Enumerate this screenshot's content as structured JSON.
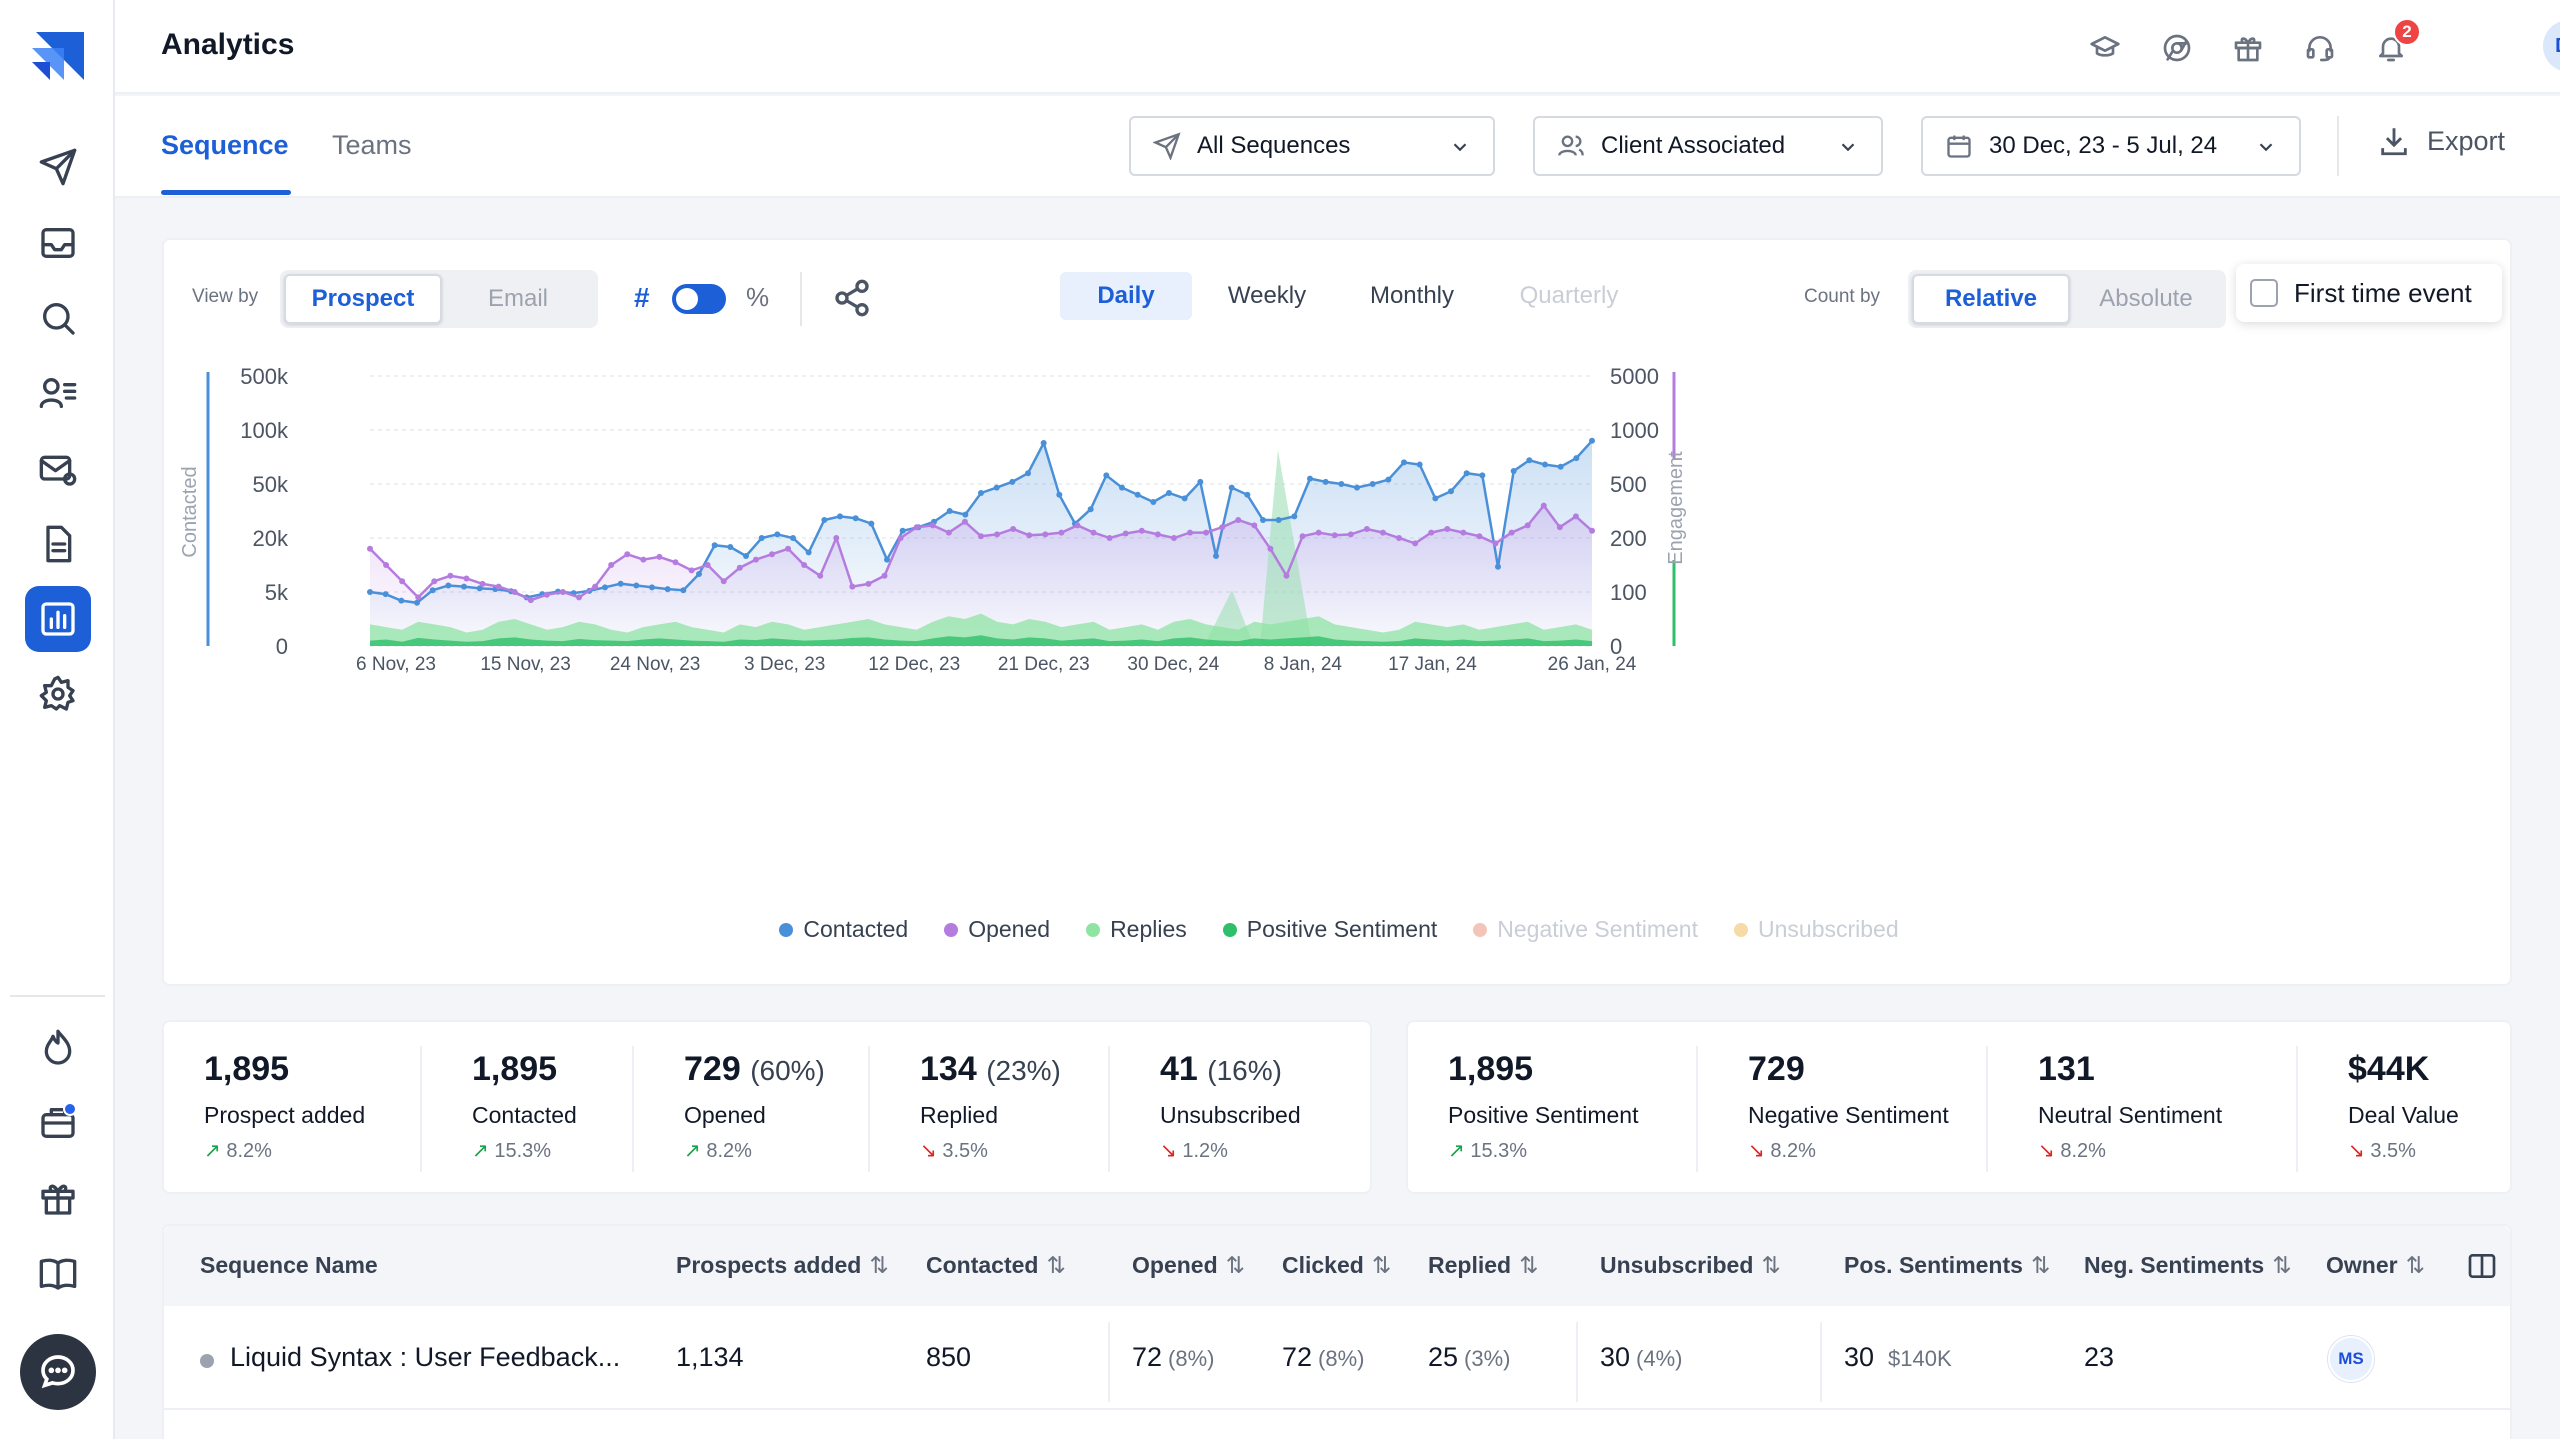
{
  "header": {
    "title": "Analytics",
    "notifications_count": "2",
    "user_initials": "DP"
  },
  "tabs": [
    {
      "label": "Sequence",
      "active": true
    },
    {
      "label": "Teams",
      "active": false
    }
  ],
  "filters": {
    "sequence": "All Sequences",
    "client": "Client Associated",
    "date_range": "30 Dec, 23 - 5 Jul, 24",
    "export_label": "Export"
  },
  "controls": {
    "view_by_label": "View by",
    "view_by_options": [
      "Prospect",
      "Email"
    ],
    "view_by_selected": "Prospect",
    "hash_label": "#",
    "percent_label": "%",
    "periods": [
      "Daily",
      "Weekly",
      "Monthly",
      "Quarterly"
    ],
    "period_selected": "Daily",
    "count_by_label": "Count by",
    "count_by_options": [
      "Relative",
      "Absolute"
    ],
    "count_by_selected": "Relative",
    "first_time_event_label": "First time event"
  },
  "chart_data": {
    "type": "line",
    "y_left_label": "Contacted",
    "y_right_label": "Engagement",
    "y_left_ticks": [
      "500k",
      "100k",
      "50k",
      "20k",
      "5k",
      "0"
    ],
    "y_right_ticks": [
      "5000",
      "1000",
      "500",
      "200",
      "100",
      "0"
    ],
    "x_tick_labels": [
      "6 Nov, 23",
      "15 Nov, 23",
      "24 Nov, 23",
      "3 Dec, 23",
      "12 Dec, 23",
      "21 Dec, 23",
      "30 Dec, 24",
      "8 Jan, 24",
      "17 Jan, 24",
      "26 Jan, 24"
    ],
    "grid": true,
    "legend_position": "bottom",
    "series": [
      {
        "name": "Contacted",
        "color": "#4a90d9",
        "axis": "left",
        "values": [
          5000,
          4800,
          4200,
          4000,
          5500,
          6800,
          6500,
          6000,
          5800,
          5200,
          4500,
          4800,
          5100,
          4900,
          5300,
          6300,
          7300,
          6800,
          6300,
          5800,
          5500,
          10000,
          18000,
          17500,
          15000,
          20000,
          22000,
          20000,
          16000,
          30000,
          32000,
          31000,
          28000,
          14000,
          24000,
          26000,
          29000,
          35000,
          33000,
          45000,
          48000,
          52000,
          60000,
          88000,
          44000,
          28000,
          36000,
          58000,
          48000,
          44000,
          40000,
          45000,
          42000,
          52000,
          15000,
          48000,
          44000,
          30000,
          30000,
          32000,
          55000,
          52000,
          50000,
          48000,
          50000,
          54000,
          70000,
          68000,
          42000,
          46000,
          60000,
          58000,
          12000,
          62000,
          72000,
          68000,
          66000,
          74000,
          90000
        ]
      },
      {
        "name": "Opened",
        "color": "#b57ce0",
        "axis": "left",
        "values": [
          180,
          150,
          120,
          90,
          120,
          130,
          125,
          115,
          110,
          100,
          85,
          95,
          100,
          90,
          110,
          150,
          170,
          160,
          165,
          155,
          140,
          150,
          120,
          145,
          160,
          170,
          180,
          150,
          130,
          200,
          110,
          115,
          130,
          200,
          260,
          270,
          230,
          290,
          210,
          220,
          250,
          215,
          220,
          230,
          270,
          230,
          200,
          225,
          240,
          220,
          200,
          230,
          230,
          260,
          300,
          270,
          180,
          130,
          210,
          230,
          215,
          220,
          250,
          230,
          200,
          190,
          230,
          250,
          230,
          210,
          190,
          230,
          270,
          380,
          260,
          320,
          240
        ]
      },
      {
        "name": "Replies",
        "color": "#8fe3a3",
        "axis": "right",
        "values": [
          40,
          35,
          30,
          45,
          40,
          35,
          25,
          30,
          45,
          50,
          40,
          30,
          35,
          45,
          40,
          30,
          25,
          35,
          40,
          45,
          35,
          30,
          25,
          40,
          35,
          45,
          40,
          30,
          35,
          40,
          45,
          50,
          40,
          35,
          30,
          45,
          55,
          50,
          60,
          45,
          40,
          50,
          45,
          35,
          40,
          45,
          30,
          35,
          40,
          30,
          45,
          50,
          40,
          35,
          30,
          45,
          40,
          45,
          50,
          55,
          40,
          35,
          30,
          25,
          30,
          45,
          40,
          35,
          40,
          30,
          35,
          40,
          45,
          30,
          35,
          40,
          30
        ]
      },
      {
        "name": "Positive Sentiment",
        "color": "#2fbf6a",
        "axis": "right",
        "values": [
          10,
          12,
          8,
          15,
          12,
          10,
          8,
          9,
          14,
          16,
          12,
          10,
          9,
          13,
          11,
          10,
          9,
          12,
          14,
          12,
          10,
          9,
          8,
          12,
          11,
          14,
          12,
          10,
          11,
          12,
          15,
          16,
          12,
          10,
          9,
          14,
          18,
          16,
          20,
          14,
          12,
          16,
          14,
          10,
          12,
          14,
          9,
          10,
          12,
          9,
          14,
          16,
          12,
          10,
          9,
          14,
          12,
          14,
          16,
          18,
          12,
          10,
          9,
          8,
          9,
          14,
          12,
          10,
          12,
          9,
          10,
          12,
          14,
          9,
          10,
          12,
          9
        ]
      },
      {
        "name": "Negative Sentiment",
        "color": "#f3c4b8",
        "axis": "right",
        "values": []
      },
      {
        "name": "Unsubscribed",
        "color": "#f6dba6",
        "axis": "right",
        "values": []
      }
    ]
  },
  "stats_left": [
    {
      "value": "1,895",
      "sub": "",
      "label": "Prospect added",
      "trend": "8.2%",
      "dir": "up"
    },
    {
      "value": "1,895",
      "sub": "",
      "label": "Contacted",
      "trend": "15.3%",
      "dir": "up"
    },
    {
      "value": "729",
      "sub": "(60%)",
      "label": "Opened",
      "trend": "8.2%",
      "dir": "up"
    },
    {
      "value": "134",
      "sub": "(23%)",
      "label": "Replied",
      "trend": "3.5%",
      "dir": "down"
    },
    {
      "value": "41",
      "sub": "(16%)",
      "label": "Unsubscribed",
      "trend": "1.2%",
      "dir": "down"
    }
  ],
  "stats_right": [
    {
      "value": "1,895",
      "label": "Positive Sentiment",
      "trend": "15.3%",
      "dir": "up"
    },
    {
      "value": "729",
      "label": "Negative Sentiment",
      "trend": "8.2%",
      "dir": "down"
    },
    {
      "value": "131",
      "label": "Neutral Sentiment",
      "trend": "8.2%",
      "dir": "down"
    },
    {
      "value": "$44K",
      "label": "Deal Value",
      "trend": "3.5%",
      "dir": "down"
    }
  ],
  "table": {
    "headers": [
      "Sequence Name",
      "Prospects added",
      "Contacted",
      "Opened",
      "Clicked",
      "Replied",
      "Unsubscribed",
      "Pos. Sentiments",
      "Neg. Sentiments",
      "Owner"
    ],
    "sort_glyph": "⇅",
    "rows": [
      {
        "name": "Liquid Syntax : User Feedback...",
        "prospects": "1,134",
        "contacted": "850",
        "opened": "72",
        "opened_pct": "(8%)",
        "clicked": "72",
        "clicked_pct": "(8%)",
        "replied": "25",
        "replied_pct": "(3%)",
        "unsub": "30",
        "unsub_pct": "(4%)",
        "pos": "30",
        "pos_value": "$140K",
        "neg": "23",
        "owner": "MS"
      }
    ]
  }
}
